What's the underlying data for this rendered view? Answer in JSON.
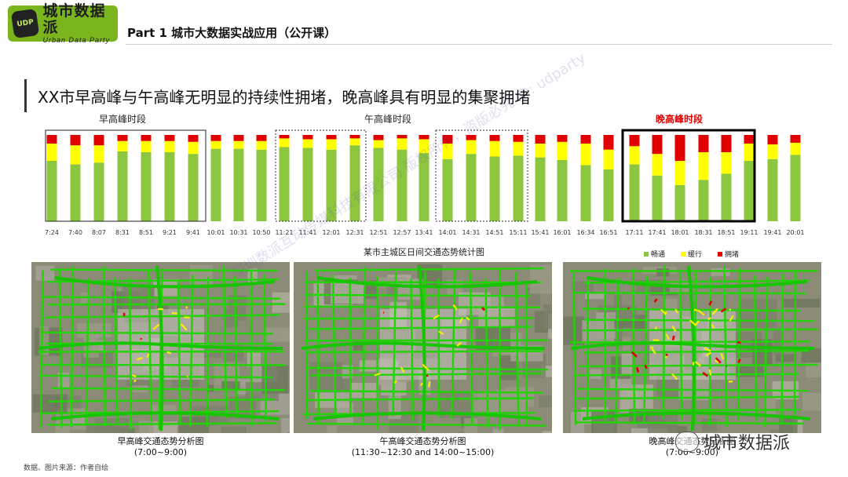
{
  "header": {
    "logo_cn": "城市数据派",
    "logo_en": "Urban Data Party",
    "logo_badge": "UDP",
    "title": "Part 1  城市大数据实战应用（公开课）"
  },
  "slide": {
    "title": "XX市早高峰与午高峰无明显的持续性拥堵，晚高峰具有明显的集聚拥堵"
  },
  "colors": {
    "smooth": "#8cc63f",
    "slow": "#ffff00",
    "congested": "#e00000",
    "evening_label": "#e00000"
  },
  "chart_data": {
    "type": "bar",
    "stacked": true,
    "title": "某市主城区日间交通态势统计图",
    "categories": [
      "7:24",
      "7:40",
      "8:07",
      "8:31",
      "8:51",
      "9:21",
      "9:41",
      "10:01",
      "10:31",
      "10:50",
      "11:21",
      "11:41",
      "12:01",
      "12:31",
      "12:51",
      "12:57",
      "13:41",
      "14:01",
      "14:31",
      "14:51",
      "15:11",
      "15:41",
      "16:01",
      "16:34",
      "16:51",
      "17:11",
      "17:41",
      "18:01",
      "18:31",
      "18:51",
      "19:11",
      "19:41",
      "20:01"
    ],
    "series": [
      {
        "name": "畅通",
        "color": "#8cc63f",
        "values": [
          70,
          66,
          68,
          81,
          80,
          80,
          78,
          84,
          84,
          83,
          86,
          85,
          83,
          88,
          85,
          83,
          79,
          72,
          78,
          75,
          76,
          74,
          71,
          65,
          60,
          66,
          53,
          42,
          48,
          55,
          70,
          72,
          77
        ]
      },
      {
        "name": "缓行",
        "color": "#ffff00",
        "values": [
          20,
          22,
          20,
          12,
          13,
          13,
          14,
          9,
          9,
          10,
          10,
          10,
          12,
          8,
          9,
          13,
          16,
          18,
          16,
          18,
          16,
          16,
          21,
          25,
          23,
          21,
          25,
          28,
          32,
          25,
          20,
          17,
          14
        ]
      },
      {
        "name": "拥堵",
        "color": "#e00000",
        "values": [
          10,
          12,
          12,
          7,
          7,
          7,
          8,
          7,
          7,
          7,
          4,
          5,
          5,
          4,
          6,
          4,
          5,
          10,
          6,
          7,
          8,
          10,
          8,
          10,
          17,
          13,
          22,
          30,
          20,
          20,
          10,
          11,
          9
        ]
      }
    ],
    "ylim": [
      0,
      100
    ],
    "group_labels": [
      {
        "label": "早高峰时段",
        "emphasis": false
      },
      {
        "label": "午高峰时段",
        "emphasis": false
      },
      {
        "label": "晚高峰时段",
        "emphasis": true
      }
    ],
    "legend": [
      "畅通",
      "缓行",
      "拥堵"
    ],
    "legend_position": "bottom-right"
  },
  "maps": [
    {
      "caption": "早高峰交通态势分析图",
      "time": "(7:00~9:00)"
    },
    {
      "caption": "午高峰交通态势分析图",
      "time": "(11:30~12:30 and 14:00~15:00)"
    },
    {
      "caption": "晚高峰交通态势分析图",
      "time": "(7:00~9:00)"
    }
  ],
  "source": "数据、图片来源：作者自绘",
  "watermark": {
    "brand": "城市数据派",
    "faint": "深圳数派互动传媒科技有限公司  版权所有，盗版必究  ID: udparty"
  }
}
